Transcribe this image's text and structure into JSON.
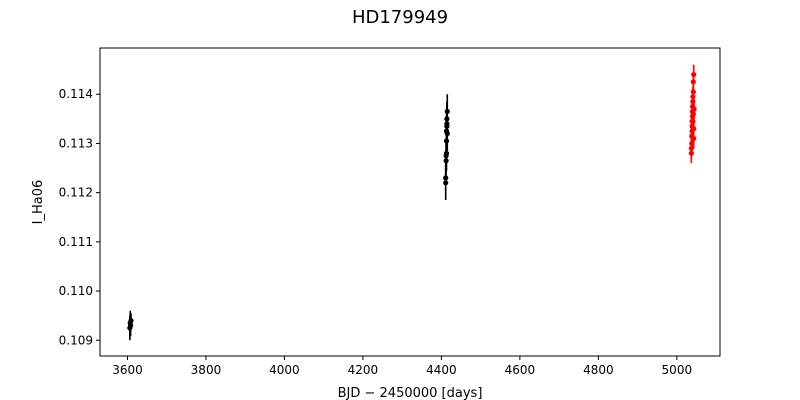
{
  "chart_data": {
    "type": "scatter",
    "title": "HD179949",
    "xlabel": "BJD − 2450000 [days]",
    "ylabel": "I_Ha06",
    "xlim": [
      3530,
      5110
    ],
    "ylim": [
      0.10868,
      0.11494
    ],
    "xticks": [
      3600,
      3800,
      4000,
      4200,
      4400,
      4600,
      4800,
      5000
    ],
    "yticks": [
      0.109,
      0.11,
      0.111,
      0.112,
      0.113,
      0.114
    ],
    "ytick_labels": [
      "0.109",
      "0.110",
      "0.111",
      "0.112",
      "0.113",
      "0.114"
    ],
    "grid": false,
    "error_bars": true,
    "series": [
      {
        "color": "#000000",
        "x": [
          3606,
          3607,
          3608,
          3609
        ],
        "y": [
          0.10925,
          0.10935,
          0.1093,
          0.1094
        ],
        "yerr": [
          0.00025,
          0.00025,
          0.00022,
          0.00015
        ]
      },
      {
        "color": "#000000",
        "x": [
          4411,
          4411,
          4412,
          4412,
          4413,
          4413,
          4413,
          4414,
          4414,
          4414,
          4415,
          4415
        ],
        "y": [
          0.1122,
          0.1123,
          0.11265,
          0.11275,
          0.1128,
          0.11305,
          0.11325,
          0.11335,
          0.1134,
          0.1135,
          0.11365,
          0.1132
        ],
        "yerr": [
          0.00035,
          0.00035,
          0.00035,
          0.00035,
          0.00035,
          0.00035,
          0.00035,
          0.00035,
          0.00035,
          0.00035,
          0.00035,
          0.00035
        ]
      },
      {
        "color": "#ff0000",
        "x": [
          5037,
          5037,
          5038,
          5038,
          5039,
          5039,
          5039,
          5040,
          5040,
          5040,
          5041,
          5041,
          5041,
          5042,
          5042,
          5042,
          5043,
          5043,
          5043,
          5044
        ],
        "y": [
          0.1128,
          0.1129,
          0.113,
          0.11315,
          0.11325,
          0.11335,
          0.11345,
          0.11355,
          0.11365,
          0.11375,
          0.11385,
          0.11395,
          0.11345,
          0.1136,
          0.11405,
          0.11425,
          0.1144,
          0.1131,
          0.1133,
          0.1137
        ],
        "yerr": [
          0.0002,
          0.0002,
          0.0002,
          0.0002,
          0.0002,
          0.0002,
          0.0002,
          0.0002,
          0.0002,
          0.0002,
          0.0002,
          0.0002,
          0.0002,
          0.0002,
          0.0002,
          0.0002,
          0.0002,
          0.0002,
          0.0002,
          0.0002
        ]
      }
    ]
  }
}
